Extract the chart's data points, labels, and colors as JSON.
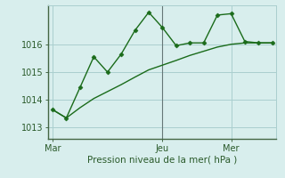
{
  "bg_color": "#d8eeed",
  "grid_color": "#aacfcf",
  "line_color": "#1a6b1a",
  "marker_color": "#1a6b1a",
  "xlabel": "Pression niveau de la mer( hPa )",
  "xlabel_fontsize": 7.5,
  "tick_label_color": "#2a5a2a",
  "tick_fontsize": 7,
  "xtick_labels": [
    "Mar",
    "Jeu",
    "Mer"
  ],
  "xtick_positions": [
    0,
    8,
    13
  ],
  "ytick_positions": [
    1013,
    1014,
    1015,
    1016
  ],
  "ylim": [
    1012.6,
    1017.4
  ],
  "xlim": [
    -0.3,
    16.3
  ],
  "line1_x": [
    0,
    1,
    2,
    3,
    4,
    5,
    6,
    7,
    8,
    9,
    10,
    11,
    12,
    13,
    14,
    15,
    16
  ],
  "line1_y": [
    1013.65,
    1013.35,
    1014.45,
    1015.55,
    1015.0,
    1015.65,
    1016.5,
    1017.15,
    1016.6,
    1015.95,
    1016.05,
    1016.05,
    1017.05,
    1017.1,
    1016.1,
    1016.05,
    1016.05
  ],
  "line2_x": [
    0,
    1,
    2,
    3,
    4,
    5,
    6,
    7,
    8,
    9,
    10,
    11,
    12,
    13,
    14,
    15,
    16
  ],
  "line2_y": [
    1013.65,
    1013.35,
    1013.72,
    1014.05,
    1014.3,
    1014.55,
    1014.82,
    1015.08,
    1015.25,
    1015.42,
    1015.6,
    1015.75,
    1015.9,
    1016.0,
    1016.05,
    1016.05,
    1016.05
  ],
  "vline_x": 8,
  "vline_color": "#667777"
}
